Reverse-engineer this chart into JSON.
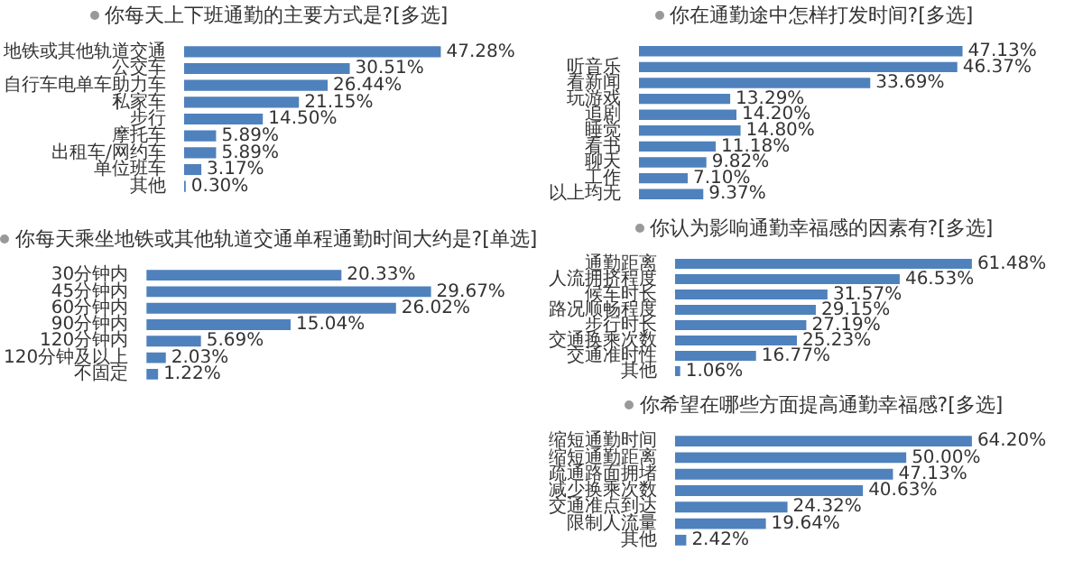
{
  "chart_data": [
    {
      "type": "bar",
      "orientation": "horizontal",
      "title": "你每天上下班通勤的主要方式是?[多选]",
      "categories": [
        "地铁或其他轨道交通",
        "公交车",
        "自行车电单车助力车",
        "私家车",
        "步行",
        "摩托车",
        "出租车/网约车",
        "单位班车",
        "其他"
      ],
      "values": [
        47.28,
        30.51,
        26.44,
        21.15,
        14.5,
        5.89,
        5.89,
        3.17,
        0.3
      ],
      "value_labels": [
        "47.28%",
        "30.51%",
        "26.44%",
        "21.15%",
        "14.50%",
        "5.89%",
        "5.89%",
        "3.17%",
        "0.30%"
      ],
      "color": "#4f81bd"
    },
    {
      "type": "bar",
      "orientation": "horizontal",
      "title": "你每天乘坐地铁或其他轨道交通单程通勤时间大约是?[单选]",
      "categories": [
        "30分钟内",
        "45分钟内",
        "60分钟内",
        "90分钟内",
        "120分钟内",
        "120分钟及以上",
        "不固定"
      ],
      "values": [
        20.33,
        29.67,
        26.02,
        15.04,
        5.69,
        2.03,
        1.22
      ],
      "value_labels": [
        "20.33%",
        "29.67%",
        "26.02%",
        "15.04%",
        "5.69%",
        "2.03%",
        "1.22%"
      ],
      "color": "#4f81bd"
    },
    {
      "type": "bar",
      "orientation": "horizontal",
      "title": "你在通勤途中怎样打发时间?[多选]",
      "categories": [
        null,
        "听音乐",
        "看新闻",
        "玩游戏",
        "追剧",
        "睡觉",
        "看书",
        "聊天",
        "工作",
        "以上均无"
      ],
      "values": [
        47.13,
        46.37,
        33.69,
        13.29,
        14.2,
        14.8,
        11.18,
        9.82,
        7.1,
        9.37
      ],
      "value_labels": [
        "47.13%",
        "46.37%",
        "33.69%",
        "13.29%",
        "14.20%",
        "14.80%",
        "11.18%",
        "9.82%",
        "7.10%",
        "9.37%"
      ],
      "color": "#4f81bd"
    },
    {
      "type": "bar",
      "orientation": "horizontal",
      "title": "你认为影响通勤幸福感的因素有?[多选]",
      "categories": [
        "通勤距离",
        "人流拥挤程度",
        "候车时长",
        "路况顺畅程度",
        "步行时长",
        "交通换乘次数",
        "交通准时性",
        "其他"
      ],
      "values": [
        61.48,
        46.53,
        31.57,
        29.15,
        27.19,
        25.23,
        16.77,
        1.06
      ],
      "value_labels": [
        "61.48%",
        "46.53%",
        "31.57%",
        "29.15%",
        "27.19%",
        "25.23%",
        "16.77%",
        "1.06%"
      ],
      "color": "#4f81bd"
    },
    {
      "type": "bar",
      "orientation": "horizontal",
      "title": "你希望在哪些方面提高通勤幸福感?[多选]",
      "categories": [
        "缩短通勤时间",
        "缩短通勤距离",
        "疏通路面拥堵",
        "减少换乘次数",
        "交通准点到达",
        "限制人流量",
        "其他"
      ],
      "values": [
        64.2,
        50.0,
        47.13,
        40.63,
        24.32,
        19.64,
        2.42
      ],
      "value_labels": [
        "64.20%",
        "50.00%",
        "47.13%",
        "40.63%",
        "24.32%",
        "19.64%",
        "2.42%"
      ],
      "color": "#4f81bd"
    }
  ]
}
